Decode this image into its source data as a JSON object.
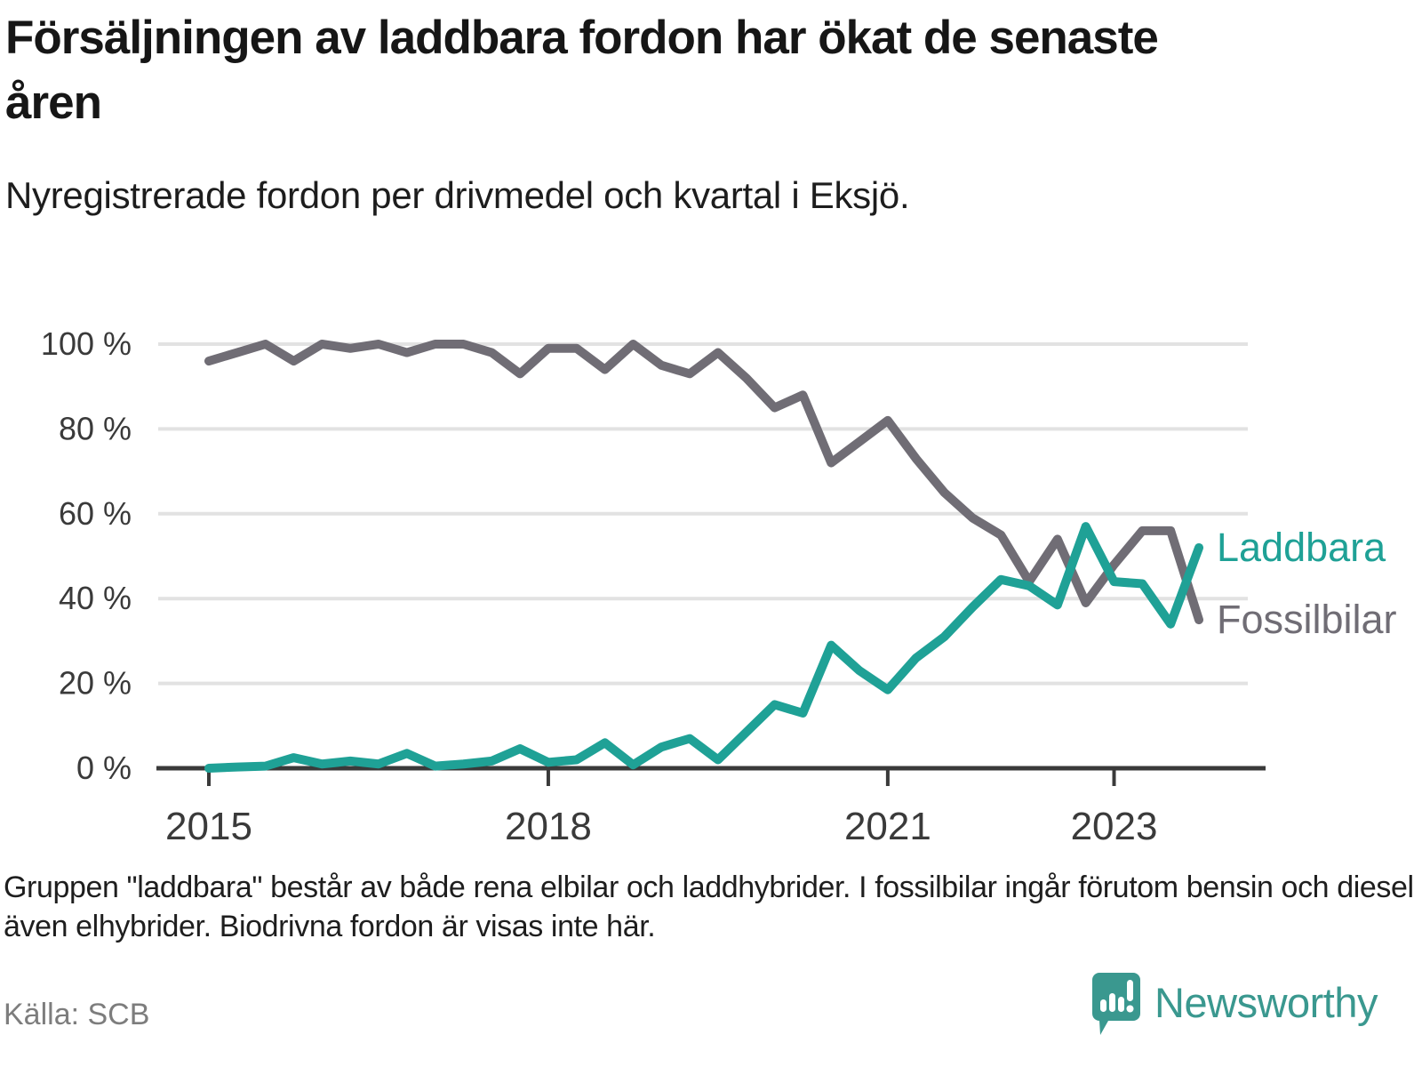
{
  "header": {
    "title": "Försäljningen av laddbara fordon har ökat de senaste åren",
    "subtitle": "Nyregistrerade fordon per drivmedel och kvartal i Eksjö."
  },
  "chart_data": {
    "type": "line",
    "x_unit": "quarter",
    "x_start_year": 2015,
    "points_per_year": 4,
    "x_tick_years": [
      2015,
      2018,
      2021,
      2023
    ],
    "y_ticks": [
      0,
      20,
      40,
      60,
      80,
      100
    ],
    "y_tick_suffix": " %",
    "ylim": [
      0,
      100
    ],
    "grid": "horizontal",
    "legend_position": "end-of-line-right",
    "series": [
      {
        "name": "Fossilbilar",
        "color": "#706d75",
        "values": [
          96,
          98,
          100,
          96,
          100,
          99,
          100,
          98,
          100,
          100,
          98,
          93,
          99,
          99,
          94,
          100,
          95,
          93,
          98,
          92,
          85,
          88,
          72,
          77,
          82,
          73,
          65,
          59,
          55,
          44,
          54,
          39,
          48,
          56,
          56,
          35
        ]
      },
      {
        "name": "Laddbara",
        "color": "#1fa196",
        "values": [
          0,
          0.3,
          0.5,
          2.5,
          1,
          1.7,
          1,
          3.5,
          0.5,
          1,
          1.7,
          4.6,
          1.4,
          2,
          6,
          0.8,
          5,
          7,
          2,
          8.5,
          15,
          13,
          29,
          23,
          18.5,
          26,
          31,
          38,
          44.5,
          43,
          38.5,
          57,
          44,
          43.5,
          34,
          52
        ]
      }
    ]
  },
  "footnote": "Gruppen \"laddbara\" består av både rena elbilar och laddhybrider. I fossilbilar ingår förutom bensin och diesel även elhybrider. Biodrivna fordon är visas inte här.",
  "source": "Källa: SCB",
  "logo": {
    "text": "Newsworthy",
    "icon": "newsworthy-pin-chart-icon",
    "color": "#3a988f"
  }
}
